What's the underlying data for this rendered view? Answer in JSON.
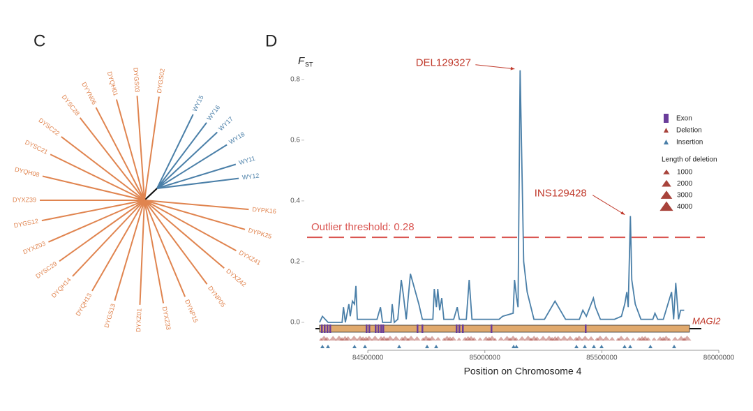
{
  "panel_labels": [
    "C",
    "D"
  ],
  "chart_data": [
    {
      "type": "tree",
      "leaves": [
        {
          "label": "DYGS02",
          "color": "#e0844f"
        },
        {
          "label": "DYGS03",
          "color": "#e0844f"
        },
        {
          "label": "DYQH01",
          "color": "#e0844f"
        },
        {
          "label": "DYYN06",
          "color": "#e0844f"
        },
        {
          "label": "DYSC28",
          "color": "#e0844f"
        },
        {
          "label": "DYSC22",
          "color": "#e0844f"
        },
        {
          "label": "DYSC21",
          "color": "#e0844f"
        },
        {
          "label": "DYQH08",
          "color": "#e0844f"
        },
        {
          "label": "DYXZ39",
          "color": "#e0844f"
        },
        {
          "label": "DYGS12",
          "color": "#e0844f"
        },
        {
          "label": "DYXZ03",
          "color": "#e0844f"
        },
        {
          "label": "DYSC29",
          "color": "#e0844f"
        },
        {
          "label": "DYQH14",
          "color": "#e0844f"
        },
        {
          "label": "DYQH13",
          "color": "#e0844f"
        },
        {
          "label": "DYGS13",
          "color": "#e0844f"
        },
        {
          "label": "DYXZ01",
          "color": "#e0844f"
        },
        {
          "label": "DYXZ33",
          "color": "#e0844f"
        },
        {
          "label": "DYNP15",
          "color": "#e0844f"
        },
        {
          "label": "DYNP05",
          "color": "#e0844f"
        },
        {
          "label": "DYXZ42",
          "color": "#e0844f"
        },
        {
          "label": "DYXZ41",
          "color": "#e0844f"
        },
        {
          "label": "DYPK25",
          "color": "#e0844f"
        },
        {
          "label": "DYPK16",
          "color": "#e0844f"
        },
        {
          "label": "WY15",
          "color": "#4a7fa8"
        },
        {
          "label": "WY16",
          "color": "#4a7fa8"
        },
        {
          "label": "WY17",
          "color": "#4a7fa8"
        },
        {
          "label": "WY18",
          "color": "#4a7fa8"
        },
        {
          "label": "WY11",
          "color": "#4a7fa8"
        },
        {
          "label": "WY12",
          "color": "#4a7fa8"
        }
      ]
    },
    {
      "type": "line",
      "y_label": "F",
      "y_label_sub": "ST",
      "x_label": "Position on Chromosome 4",
      "color": "#4a7fa8",
      "x": [
        84294000,
        84306000,
        84330000,
        84390000,
        84396000,
        84404000,
        84419000,
        84425000,
        84434000,
        84443000,
        84449000,
        84455000,
        84479000,
        84539000,
        84554000,
        84563000,
        84599000,
        84604000,
        84613000,
        84628000,
        84643000,
        84652000,
        84664000,
        84682000,
        84718000,
        84733000,
        84778000,
        84784000,
        84793000,
        84799000,
        84807000,
        84816000,
        84825000,
        84867000,
        84882000,
        84891000,
        84921000,
        84933000,
        84945000,
        85016000,
        85061000,
        85076000,
        85121000,
        85127000,
        85136000,
        85142000,
        85151000,
        85166000,
        85181000,
        85210000,
        85255000,
        85300000,
        85345000,
        85404000,
        85419000,
        85434000,
        85464000,
        85473000,
        85494000,
        85524000,
        85554000,
        85584000,
        85598000,
        85607000,
        85613000,
        85622000,
        85628000,
        85643000,
        85667000,
        85718000,
        85727000,
        85739000,
        85763000,
        85798000,
        85807000,
        85816000,
        85828000,
        85837000,
        85852000
      ],
      "values": [
        0,
        0.02,
        0,
        0,
        0.05,
        0,
        0.06,
        0.02,
        0.07,
        0.06,
        0.12,
        0.01,
        0.01,
        0.01,
        0.05,
        0,
        0,
        0.06,
        0,
        0.01,
        0.14,
        0.09,
        0.01,
        0.16,
        0.06,
        0.01,
        0.01,
        0.11,
        0.05,
        0.11,
        0.04,
        0.08,
        0.01,
        0.01,
        0.05,
        0.01,
        0.01,
        0.14,
        0.01,
        0.01,
        0.01,
        0.02,
        0.03,
        0.14,
        0.08,
        0.05,
        0.83,
        0.2,
        0.1,
        0.01,
        0.01,
        0.07,
        0.01,
        0.01,
        0.04,
        0.02,
        0.08,
        0.05,
        0.01,
        0.01,
        0.01,
        0.02,
        0.06,
        0.1,
        0.05,
        0.35,
        0.14,
        0.06,
        0.01,
        0.01,
        0.03,
        0.01,
        0.01,
        0.1,
        0.01,
        0.13,
        0.01,
        0.04,
        0.04
      ],
      "xlim": [
        84200000,
        86000000
      ],
      "xticks": [
        84500000,
        85000000,
        85500000,
        86000000
      ],
      "ylim": [
        0,
        0.85
      ],
      "yticks": [
        {
          "value": 0,
          "label": "0.0"
        },
        0.2,
        0.4,
        0.6,
        0.8
      ],
      "threshold": {
        "value": 0.28,
        "label": "Outlier threshold: 0.28",
        "color": "#d9534f"
      },
      "annotations": [
        {
          "text": "DEL129327",
          "x": 85151000,
          "y": 0.83
        },
        {
          "text": "INS129428",
          "x": 85622000,
          "y": 0.35
        }
      ],
      "gene_label": "MAGI2",
      "legend": {
        "items": [
          {
            "label": "Exon",
            "color": "#6a3d9a"
          },
          {
            "label": "Deletion",
            "color": "#a8433b"
          },
          {
            "label": "Insertion",
            "color": "#4a7fa8"
          }
        ],
        "size_title": "Length of deletion",
        "sizes": [
          1000,
          2000,
          3000,
          4000
        ]
      }
    }
  ]
}
